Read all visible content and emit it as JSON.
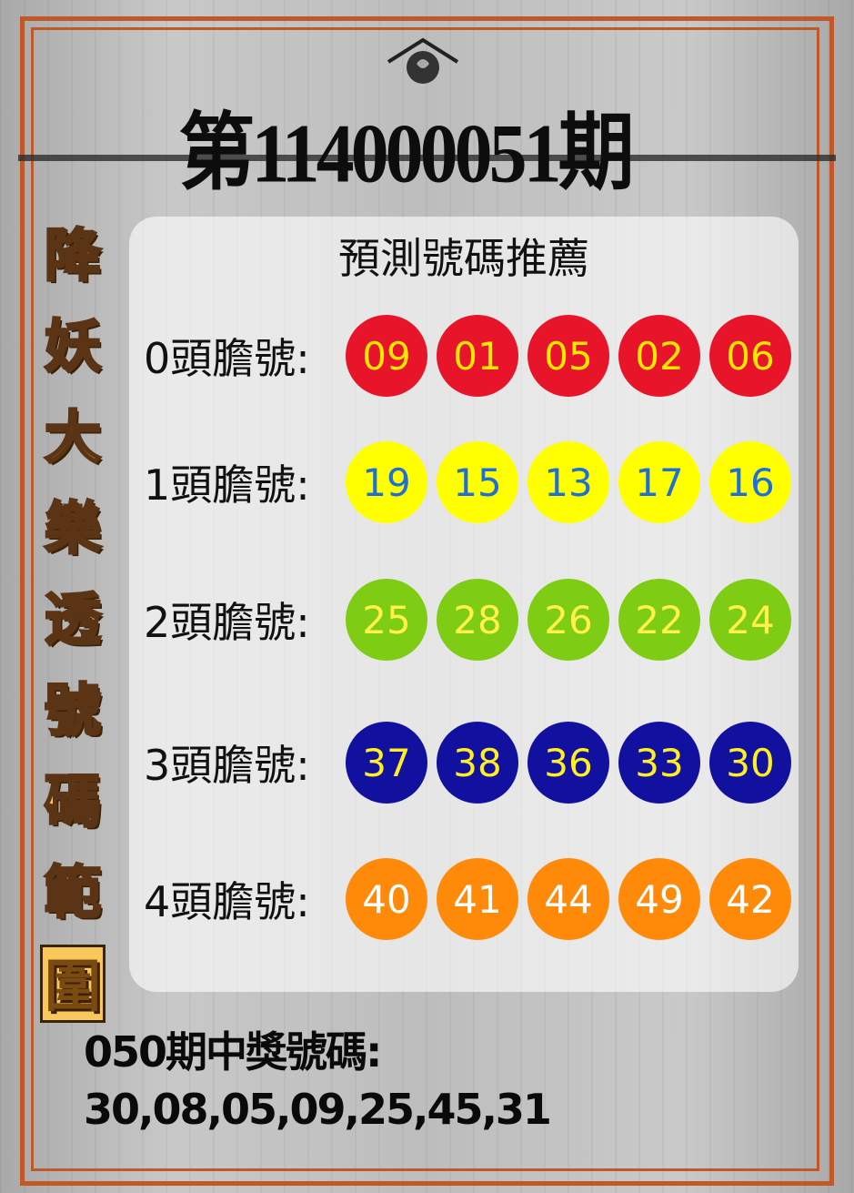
{
  "title": "第114000051期",
  "side_title": [
    "降",
    "妖",
    "大",
    "樂",
    "透",
    "號",
    "碼",
    "範",
    "圍"
  ],
  "panel": {
    "subtitle": "預測號碼推薦",
    "rows": [
      {
        "label": "0頭膽號:",
        "numbers": [
          "09",
          "01",
          "05",
          "02",
          "06"
        ],
        "ball_color": "#e8142a",
        "text_color": "#ffe600"
      },
      {
        "label": "1頭膽號:",
        "numbers": [
          "19",
          "15",
          "13",
          "17",
          "16"
        ],
        "ball_color": "#ffff00",
        "text_color": "#1e6fd8"
      },
      {
        "label": "2頭膽號:",
        "numbers": [
          "25",
          "28",
          "26",
          "22",
          "24"
        ],
        "ball_color": "#7fcc14",
        "text_color": "#fff04a"
      },
      {
        "label": "3頭膽號:",
        "numbers": [
          "37",
          "38",
          "36",
          "33",
          "30"
        ],
        "ball_color": "#12109e",
        "text_color": "#ffee22"
      },
      {
        "label": "4頭膽號:",
        "numbers": [
          "40",
          "41",
          "44",
          "49",
          "42"
        ],
        "ball_color": "#ff8a0a",
        "text_color": "#ffffff"
      }
    ]
  },
  "previous": {
    "label": "050期中獎號碼:",
    "numbers": "30,08,05,09,25,45,31"
  },
  "colors": {
    "frame": "#c0582a",
    "side_text": "#f8c95a"
  }
}
